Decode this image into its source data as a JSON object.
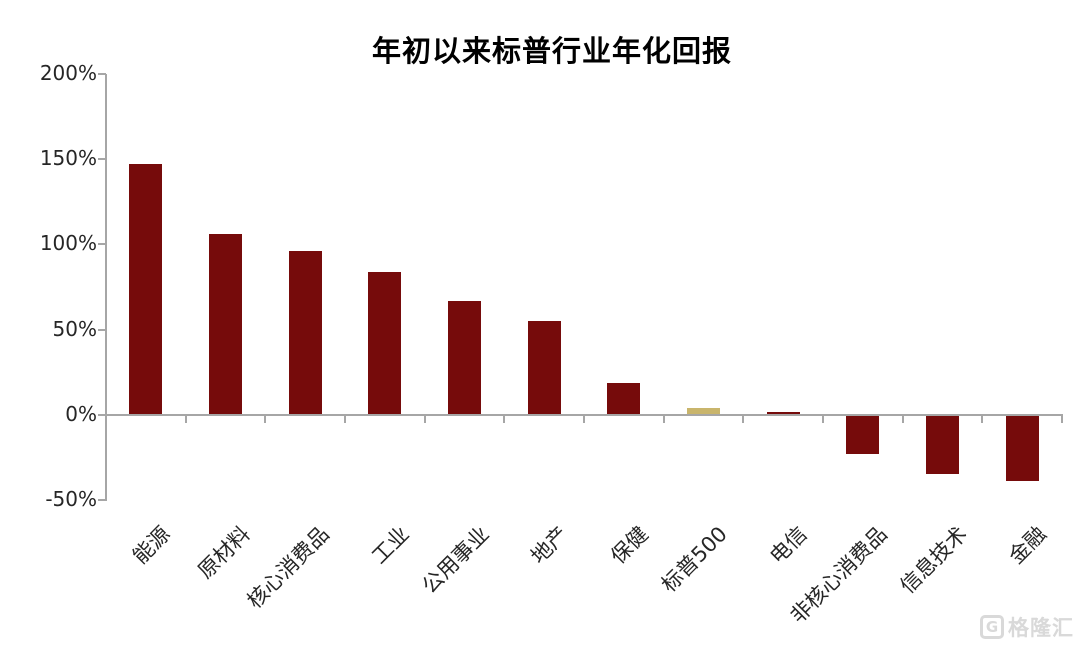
{
  "chart_data": {
    "type": "bar",
    "title": "年初以来标普行业年化回报",
    "categories": [
      "能源",
      "原材料",
      "核心消费品",
      "工业",
      "公用事业",
      "地产",
      "保健",
      "标普500",
      "电信",
      "非核心消费品",
      "信息技术",
      "金融"
    ],
    "values": [
      147,
      106,
      96,
      84,
      67,
      55,
      19,
      4,
      2,
      -22,
      -34,
      -38
    ],
    "unit": "%",
    "bar_colors": [
      "#760B0B",
      "#760B0B",
      "#760B0B",
      "#760B0B",
      "#760B0B",
      "#760B0B",
      "#760B0B",
      "#C9B56C",
      "#760B0B",
      "#760B0B",
      "#760B0B",
      "#760B0B"
    ],
    "highlight_category": "标普500",
    "highlight_color": "#C9B56C",
    "default_bar_color": "#760B0B",
    "ylim": [
      -50,
      200
    ],
    "ytick_values": [
      200,
      150,
      100,
      50,
      0,
      -50
    ],
    "ytick_labels": [
      "200%",
      "150%",
      "100%",
      "50%",
      "0%",
      "-50%"
    ],
    "xlabel": "",
    "ylabel": "",
    "grid": false,
    "legend_position": "none",
    "axis_color": "#a6a6a6",
    "label_color": "#262626",
    "category_label_rotation_deg": -45
  },
  "watermark": {
    "logo_letter": "G",
    "text": "格隆汇"
  }
}
